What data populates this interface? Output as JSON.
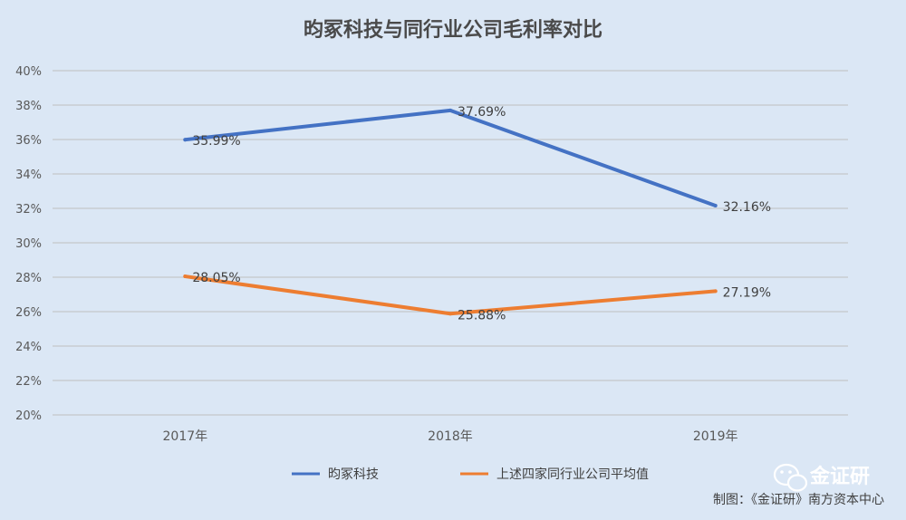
{
  "chart_data": {
    "type": "line",
    "title": "昀冢科技与同行业公司毛利率对比",
    "categories": [
      "2017年",
      "2018年",
      "2019年"
    ],
    "series": [
      {
        "name": "昀冢科技",
        "values": [
          35.99,
          37.69,
          32.16
        ],
        "labels": [
          "35.99%",
          "37.69%",
          "32.16%"
        ],
        "color": "#4472c4"
      },
      {
        "name": "上述四家同行业公司平均值",
        "values": [
          28.05,
          25.88,
          27.19
        ],
        "labels": [
          "28.05%",
          "25.88%",
          "27.19%"
        ],
        "color": "#ed7d31"
      }
    ],
    "ylim": [
      20,
      40
    ],
    "yticks": [
      "20%",
      "22%",
      "24%",
      "26%",
      "28%",
      "30%",
      "32%",
      "34%",
      "36%",
      "38%",
      "40%"
    ],
    "grid": true,
    "legend": "bottom"
  },
  "watermark": {
    "icon": "wechat-icon",
    "text": "金证研"
  },
  "credit": "制图：《金证研》南方资本中心"
}
